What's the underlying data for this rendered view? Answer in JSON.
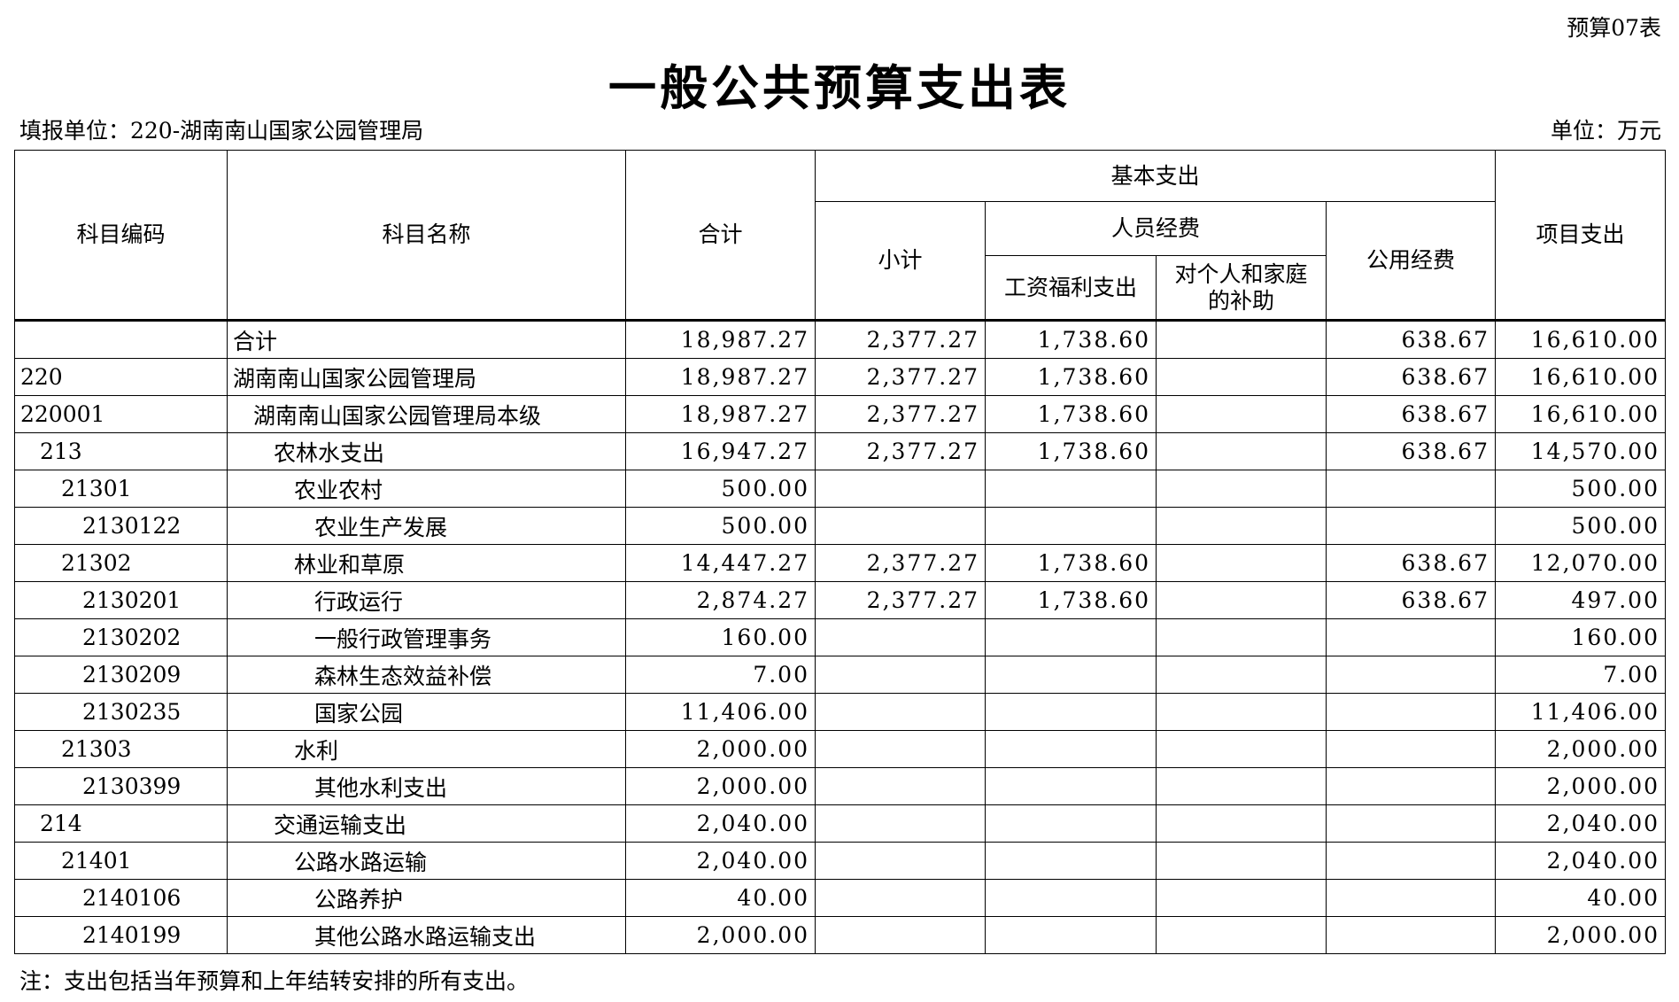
{
  "form_no": "预算07表",
  "title": "一般公共预算支出表",
  "reporting_unit": "填报单位：220-湖南南山国家公园管理局",
  "unit": "单位：万元",
  "headers": {
    "code": "科目编码",
    "name": "科目名称",
    "total": "合计",
    "basic": "基本支出",
    "subtotal": "小计",
    "personnel": "人员经费",
    "salary": "工资福利支出",
    "subsidy": "对个人和家庭的补助",
    "public": "公用经费",
    "project": "项目支出"
  },
  "rows": [
    {
      "code": "",
      "name": "合计",
      "level": 0,
      "total": "18,987.27",
      "subtotal": "2,377.27",
      "salary": "1,738.60",
      "subsidy": "",
      "public": "638.67",
      "project": "16,610.00"
    },
    {
      "code": "220",
      "name": "湖南南山国家公园管理局",
      "level": 0,
      "total": "18,987.27",
      "subtotal": "2,377.27",
      "salary": "1,738.60",
      "subsidy": "",
      "public": "638.67",
      "project": "16,610.00"
    },
    {
      "code": "220001",
      "name": "湖南南山国家公园管理局本级",
      "level": 1,
      "total": "18,987.27",
      "subtotal": "2,377.27",
      "salary": "1,738.60",
      "subsidy": "",
      "public": "638.67",
      "project": "16,610.00"
    },
    {
      "code": "213",
      "name": "农林水支出",
      "level": 2,
      "total": "16,947.27",
      "subtotal": "2,377.27",
      "salary": "1,738.60",
      "subsidy": "",
      "public": "638.67",
      "project": "14,570.00"
    },
    {
      "code": "21301",
      "name": "农业农村",
      "level": 3,
      "total": "500.00",
      "subtotal": "",
      "salary": "",
      "subsidy": "",
      "public": "",
      "project": "500.00"
    },
    {
      "code": "2130122",
      "name": "农业生产发展",
      "level": 4,
      "total": "500.00",
      "subtotal": "",
      "salary": "",
      "subsidy": "",
      "public": "",
      "project": "500.00"
    },
    {
      "code": "21302",
      "name": "林业和草原",
      "level": 3,
      "total": "14,447.27",
      "subtotal": "2,377.27",
      "salary": "1,738.60",
      "subsidy": "",
      "public": "638.67",
      "project": "12,070.00"
    },
    {
      "code": "2130201",
      "name": "行政运行",
      "level": 4,
      "total": "2,874.27",
      "subtotal": "2,377.27",
      "salary": "1,738.60",
      "subsidy": "",
      "public": "638.67",
      "project": "497.00"
    },
    {
      "code": "2130202",
      "name": "一般行政管理事务",
      "level": 4,
      "total": "160.00",
      "subtotal": "",
      "salary": "",
      "subsidy": "",
      "public": "",
      "project": "160.00"
    },
    {
      "code": "2130209",
      "name": "森林生态效益补偿",
      "level": 4,
      "total": "7.00",
      "subtotal": "",
      "salary": "",
      "subsidy": "",
      "public": "",
      "project": "7.00"
    },
    {
      "code": "2130235",
      "name": "国家公园",
      "level": 4,
      "total": "11,406.00",
      "subtotal": "",
      "salary": "",
      "subsidy": "",
      "public": "",
      "project": "11,406.00"
    },
    {
      "code": "21303",
      "name": "水利",
      "level": 3,
      "total": "2,000.00",
      "subtotal": "",
      "salary": "",
      "subsidy": "",
      "public": "",
      "project": "2,000.00"
    },
    {
      "code": "2130399",
      "name": "其他水利支出",
      "level": 4,
      "total": "2,000.00",
      "subtotal": "",
      "salary": "",
      "subsidy": "",
      "public": "",
      "project": "2,000.00"
    },
    {
      "code": "214",
      "name": "交通运输支出",
      "level": 2,
      "total": "2,040.00",
      "subtotal": "",
      "salary": "",
      "subsidy": "",
      "public": "",
      "project": "2,040.00"
    },
    {
      "code": "21401",
      "name": "公路水路运输",
      "level": 3,
      "total": "2,040.00",
      "subtotal": "",
      "salary": "",
      "subsidy": "",
      "public": "",
      "project": "2,040.00"
    },
    {
      "code": "2140106",
      "name": "公路养护",
      "level": 4,
      "total": "40.00",
      "subtotal": "",
      "salary": "",
      "subsidy": "",
      "public": "",
      "project": "40.00"
    },
    {
      "code": "2140199",
      "name": "其他公路水路运输支出",
      "level": 4,
      "total": "2,000.00",
      "subtotal": "",
      "salary": "",
      "subsidy": "",
      "public": "",
      "project": "2,000.00"
    }
  ],
  "note": "注：支出包括当年预算和上年结转安排的所有支出。"
}
